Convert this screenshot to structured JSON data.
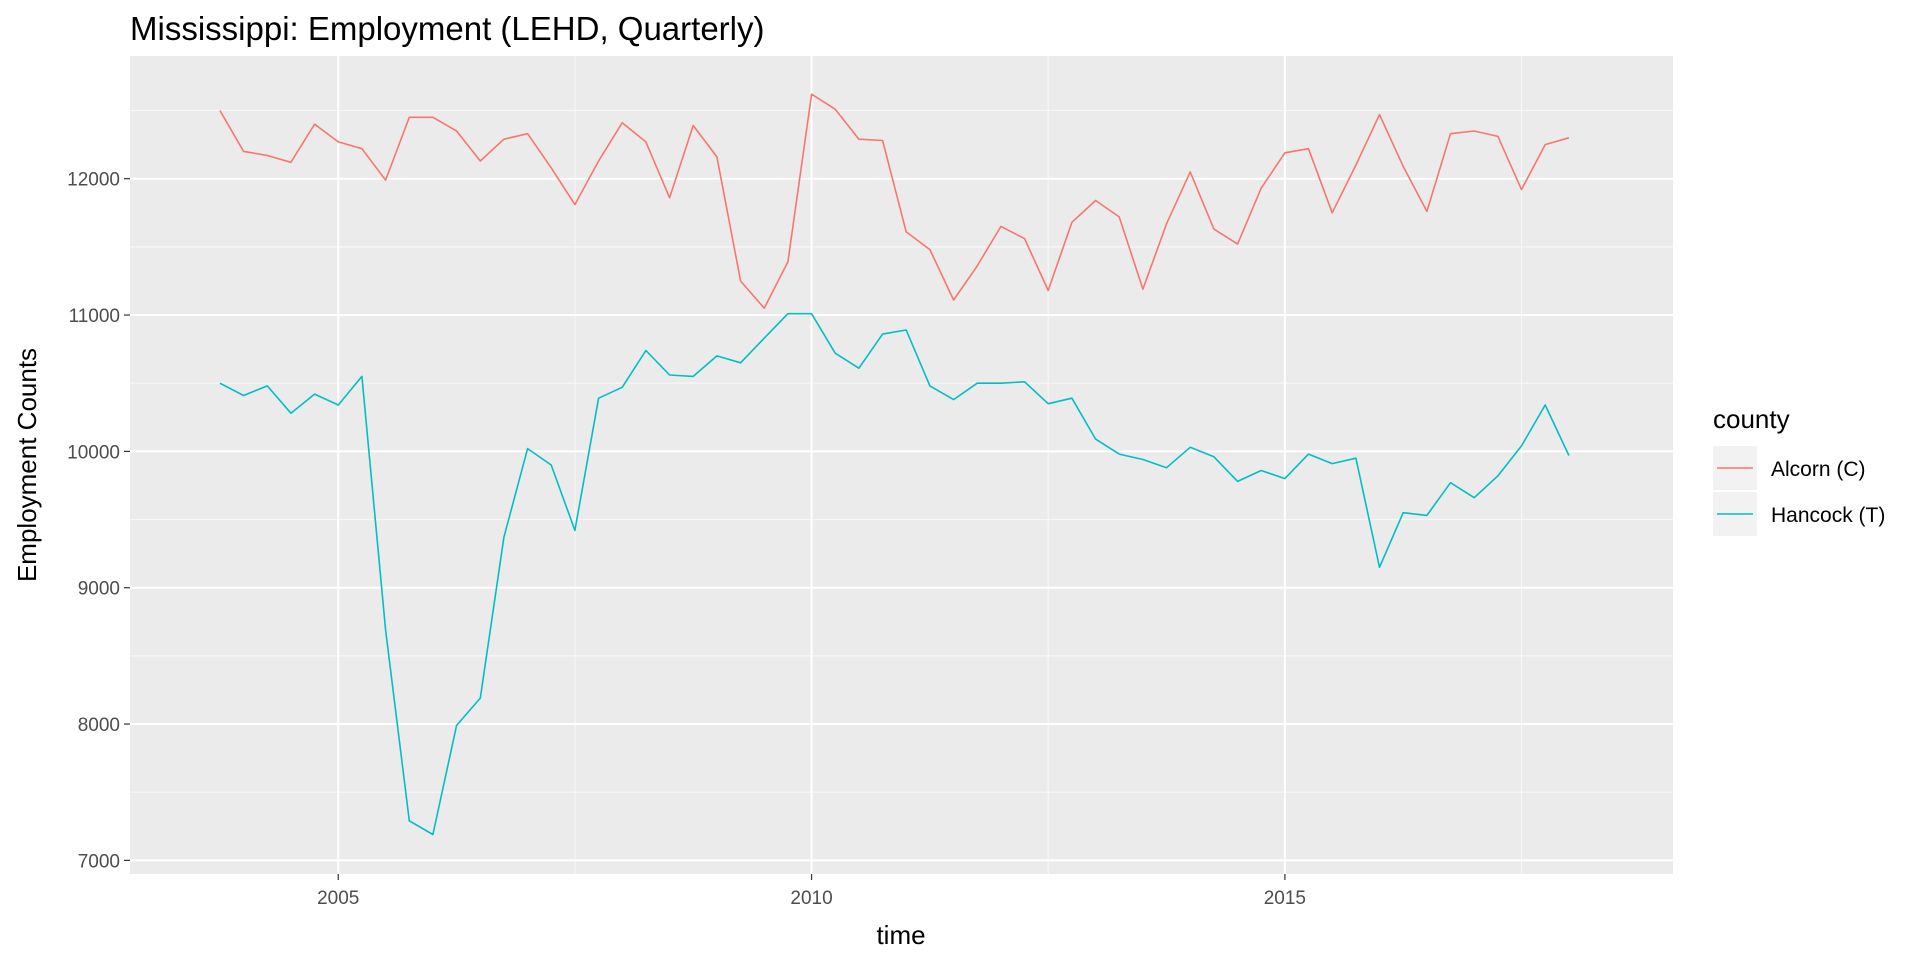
{
  "chart_data": {
    "type": "line",
    "title": "Mississippi: Employment (LEHD, Quarterly)",
    "xlabel": "time",
    "ylabel": "Employment Counts",
    "xlim": [
      2002.8,
      2019.1
    ],
    "ylim": [
      6900,
      12900
    ],
    "x_ticks": [
      2005,
      2010,
      2015
    ],
    "y_ticks": [
      7000,
      8000,
      9000,
      10000,
      11000,
      12000
    ],
    "grid": true,
    "legend": {
      "title": "county",
      "placement": "right"
    },
    "x": [
      2003.75,
      2004.0,
      2004.25,
      2004.5,
      2004.75,
      2005.0,
      2005.25,
      2005.5,
      2005.75,
      2006.0,
      2006.25,
      2006.5,
      2006.75,
      2007.0,
      2007.25,
      2007.5,
      2007.75,
      2008.0,
      2008.25,
      2008.5,
      2008.75,
      2009.0,
      2009.25,
      2009.5,
      2009.75,
      2010.0,
      2010.25,
      2010.5,
      2010.75,
      2011.0,
      2011.25,
      2011.5,
      2011.75,
      2012.0,
      2012.25,
      2012.5,
      2012.75,
      2013.0,
      2013.25,
      2013.5,
      2013.75,
      2014.0,
      2014.25,
      2014.5,
      2014.75,
      2015.0,
      2015.25,
      2015.5,
      2015.75,
      2016.0,
      2016.25,
      2016.5,
      2016.75,
      2017.0,
      2017.25,
      2017.5,
      2017.75,
      2018.0
    ],
    "series": [
      {
        "name": "Alcorn (C)",
        "color": "#F8766D",
        "values": [
          12500,
          12200,
          12170,
          12120,
          12400,
          12270,
          12220,
          11990,
          12450,
          12450,
          12350,
          12130,
          12290,
          12330,
          12080,
          11810,
          12130,
          12410,
          12270,
          11860,
          12390,
          12160,
          11250,
          11050,
          11390,
          12620,
          12510,
          12290,
          12280,
          11610,
          11480,
          11110,
          11360,
          11650,
          11560,
          11180,
          11680,
          11840,
          11720,
          11190,
          11670,
          12050,
          11630,
          11520,
          11930,
          12190,
          12220,
          11750,
          12100,
          12470,
          12090,
          11760,
          12330,
          12350,
          12310,
          11920,
          12250,
          12300
        ]
      },
      {
        "name": "Hancock (T)",
        "color": "#00BFC4",
        "values": [
          10500,
          10410,
          10480,
          10280,
          10420,
          10340,
          10550,
          8690,
          7290,
          7190,
          7990,
          8190,
          9370,
          10020,
          9900,
          9420,
          10390,
          10470,
          10740,
          10560,
          10550,
          10700,
          10650,
          10830,
          11010,
          11010,
          10720,
          10610,
          10860,
          10890,
          10480,
          10380,
          10500,
          10500,
          10510,
          10350,
          10390,
          10090,
          9980,
          9940,
          9880,
          10030,
          9960,
          9780,
          9860,
          9800,
          9980,
          9910,
          9950,
          9150,
          9550,
          9530,
          9770,
          9660,
          9820,
          10040,
          10340,
          9970
        ]
      }
    ]
  }
}
